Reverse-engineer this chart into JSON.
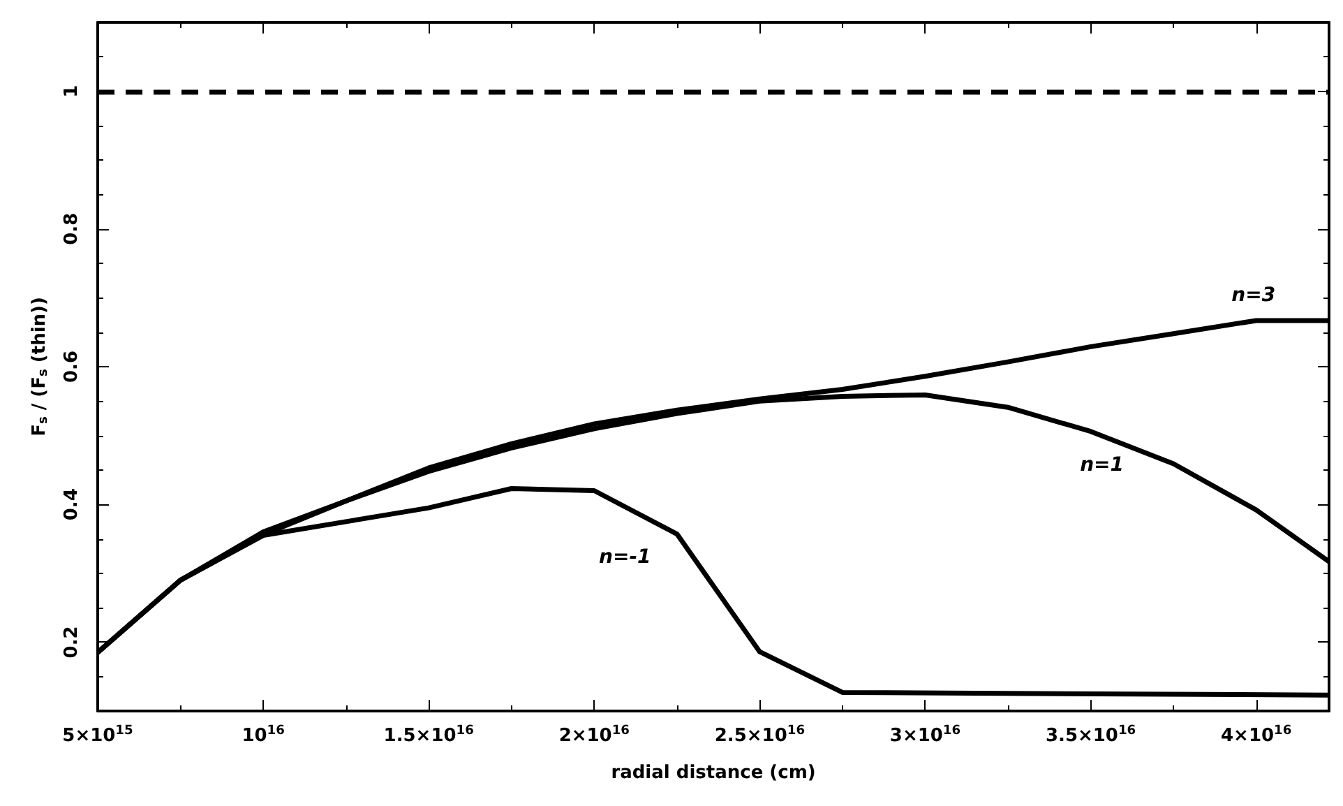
{
  "chart_data": {
    "type": "line",
    "xlabel": "radial distance (cm)",
    "ylabel": "F$_{s}$ / (F$_{s}$ (thin))",
    "xlim": [
      5000000000000000.0,
      4.22e+16
    ],
    "ylim": [
      0.1,
      1.1
    ],
    "xticks": [
      {
        "value": 5000000000000000.0,
        "label": "5×10$^{15}$"
      },
      {
        "value": 1e+16,
        "label": "10$^{16}$"
      },
      {
        "value": 1.5e+16,
        "label": "1.5×10$^{16}$"
      },
      {
        "value": 2e+16,
        "label": "2×10$^{16}$"
      },
      {
        "value": 2.5e+16,
        "label": "2.5×10$^{16}$"
      },
      {
        "value": 3e+16,
        "label": "3×10$^{16}$"
      },
      {
        "value": 3.5e+16,
        "label": "3.5×10$^{16}$"
      },
      {
        "value": 4e+16,
        "label": "4×10$^{16}$"
      }
    ],
    "yticks": [
      0.2,
      0.4,
      0.6,
      0.8,
      1
    ],
    "x": [
      5000000000000000.0,
      7500000000000000.0,
      1e+16,
      1.25e+16,
      1.5e+16,
      1.75e+16,
      2e+16,
      2.25e+16,
      2.5e+16,
      2.75e+16,
      3e+16,
      3.25e+16,
      3.5e+16,
      3.75e+16,
      4e+16,
      4.22e+16
    ],
    "series": [
      {
        "name": "n=3",
        "color": "#000000",
        "values": [
          0.185,
          0.29,
          0.36,
          0.405,
          0.453,
          0.488,
          0.517,
          0.537,
          0.553,
          0.567,
          0.586,
          0.607,
          0.629,
          0.648,
          0.667,
          0.667
        ]
      },
      {
        "name": "n=1",
        "color": "#000000",
        "values": [
          0.185,
          0.29,
          0.356,
          0.405,
          0.448,
          0.482,
          0.51,
          0.532,
          0.55,
          0.557,
          0.559,
          0.541,
          0.506,
          0.459,
          0.392,
          0.317
        ]
      },
      {
        "name": "n=-1",
        "color": "#000000",
        "x": [
          5000000000000000.0,
          7500000000000000.0,
          1e+16,
          1.5e+16,
          1.75e+16,
          2e+16,
          2.25e+16,
          2.5e+16,
          2.75e+16,
          4.22e+16
        ],
        "values": [
          0.185,
          0.29,
          0.355,
          0.395,
          0.423,
          0.42,
          0.357,
          0.186,
          0.127,
          0.123
        ]
      }
    ],
    "ref_lines": [
      {
        "axis": "y",
        "value": 1,
        "line_style": "dashed",
        "color": "#000000"
      }
    ],
    "grid": false,
    "legend": false,
    "marker": "none",
    "line_style": "solid"
  }
}
